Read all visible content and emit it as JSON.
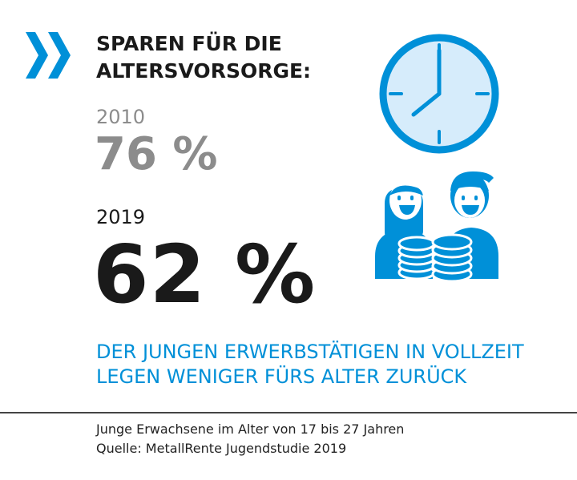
{
  "heading": {
    "line1": "SPAREN FÜR DIE",
    "line2": "ALTERSVORSORGE:"
  },
  "stats": [
    {
      "year": "2010",
      "value": "76 %"
    },
    {
      "year": "2019",
      "value": "62 %"
    }
  ],
  "statement": {
    "line1": "DER JUNGEN ERWERBSTÄTIGEN IN VOLLZEIT",
    "line2": "LEGEN WENIGER FÜRS ALTER ZURÜCK"
  },
  "footnote": {
    "line1": "Junge Erwachsene im Alter von 17 bis 27 Jahren",
    "line2": "Quelle: MetallRente Jugendstudie 2019"
  },
  "icons": [
    "double-chevron-icon",
    "clock-icon",
    "woman-icon",
    "man-icon",
    "coin-stack-icon"
  ],
  "colors": {
    "accent": "#0090d8",
    "accent_light": "#d6ecfb",
    "text_dark": "#1a1a1a",
    "text_grey": "#8c8c8c"
  }
}
